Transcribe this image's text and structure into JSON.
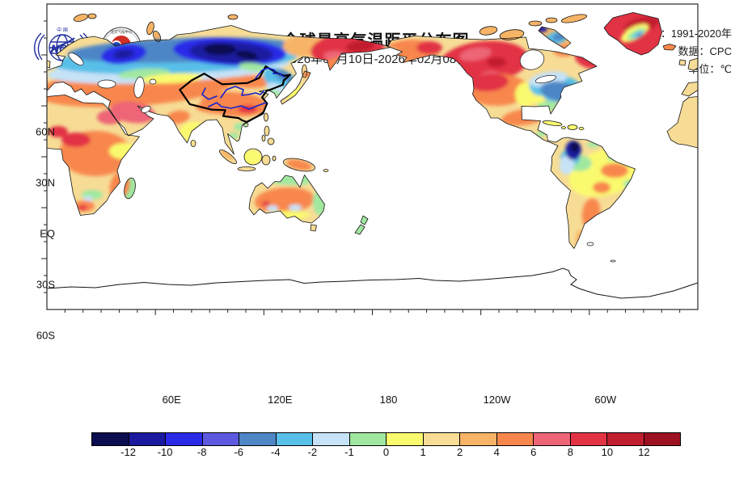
{
  "header": {
    "title": "全球最高气温距平分布图",
    "subtitle": "2026年01月10日-2026年02月08日",
    "meta": {
      "climatology": "气候值：1991-2020年",
      "source": "数据：CPC",
      "unit": "单位：℃"
    },
    "logos": {
      "left": "NCC",
      "right": "BCC"
    }
  },
  "map": {
    "lat_ticks": [
      "60N",
      "30N",
      "EQ",
      "30S",
      "60S"
    ],
    "lon_ticks": [
      "60E",
      "120E",
      "180",
      "120W",
      "60W"
    ],
    "overlays": {
      "china_boundary_color": "#000000",
      "china_rivers_color": "#1522cc"
    }
  },
  "colorbar": {
    "colors": [
      "#0c0c50",
      "#1a1aa0",
      "#2a2ae8",
      "#5e5ae0",
      "#4e86c6",
      "#58c0e8",
      "#c6e2f7",
      "#a0e8a0",
      "#fafa6e",
      "#f7dc96",
      "#f8b466",
      "#f8874d",
      "#ed6576",
      "#e23345",
      "#c11e2f",
      "#9c1220"
    ],
    "tick_labels": [
      "-12",
      "-10",
      "-8",
      "-6",
      "-4",
      "-2",
      "-1",
      "0",
      "1",
      "2",
      "4",
      "6",
      "8",
      "10",
      "12"
    ]
  }
}
